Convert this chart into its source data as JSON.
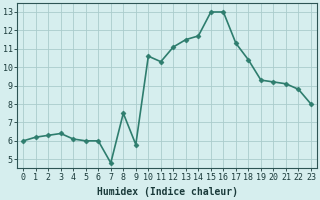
{
  "x": [
    0,
    1,
    2,
    3,
    4,
    5,
    6,
    7,
    8,
    9,
    10,
    11,
    12,
    13,
    14,
    15,
    16,
    17,
    18,
    19,
    20,
    21,
    22,
    23
  ],
  "y": [
    6.0,
    6.2,
    6.3,
    6.4,
    6.1,
    6.0,
    6.0,
    4.8,
    7.5,
    5.8,
    10.6,
    10.3,
    11.1,
    11.5,
    11.7,
    13.0,
    13.0,
    11.3,
    10.4,
    9.3,
    9.2,
    9.1,
    8.8,
    8.0
  ],
  "line_color": "#2e7d6e",
  "marker": "D",
  "marker_size": 2.5,
  "bg_color": "#d6eeee",
  "grid_color": "#aacccc",
  "xlabel": "Humidex (Indice chaleur)",
  "xlim": [
    -0.5,
    23.5
  ],
  "ylim": [
    4.5,
    13.5
  ],
  "yticks": [
    5,
    6,
    7,
    8,
    9,
    10,
    11,
    12,
    13
  ],
  "xtick_labels": [
    "0",
    "1",
    "2",
    "3",
    "4",
    "5",
    "6",
    "7",
    "8",
    "9",
    "10",
    "11",
    "12",
    "13",
    "14",
    "15",
    "16",
    "17",
    "18",
    "19",
    "20",
    "21",
    "22",
    "23"
  ],
  "xlabel_fontsize": 7,
  "tick_fontsize": 6,
  "line_width": 1.2,
  "axis_color": "#1a3a3a",
  "spine_color": "#2e5555"
}
